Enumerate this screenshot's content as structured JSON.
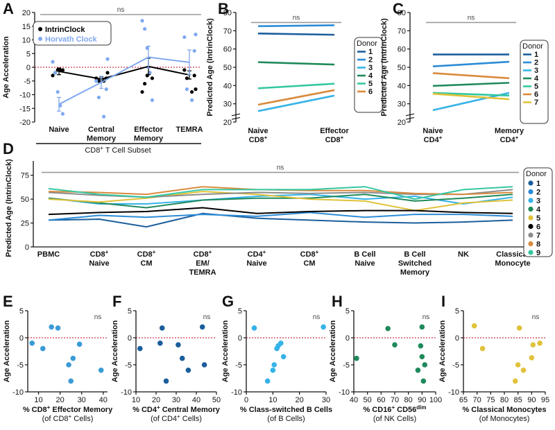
{
  "chart_data": [
    {
      "panel": "A",
      "type": "scatter",
      "ylabel": "Age Acceleration",
      "xlabel": "CD8+ T Cell Subset",
      "ylim": [
        -20,
        20
      ],
      "yticks": [
        -20,
        -15,
        -10,
        -5,
        0,
        5,
        10,
        15,
        20
      ],
      "categories": [
        "Naive",
        "Central\nMemory",
        "Effector\nMemory",
        "TEMRA"
      ],
      "annotation": "ns",
      "legend": [
        "IntrinClock",
        "Horvath Clock"
      ],
      "series": [
        {
          "name": "IntrinClock",
          "color": "#000000",
          "points": [
            [
              -1,
              -3
            ],
            [
              -3,
              -2
            ],
            [
              -4,
              -1
            ],
            [
              -6,
              -1
            ],
            [
              -9,
              -1
            ],
            [
              -1,
              -2
            ],
            [
              -2,
              -4
            ],
            [
              -3,
              -4
            ],
            [
              -4,
              -5
            ],
            [
              -5,
              -5
            ],
            [
              8,
              -9
            ],
            [
              12,
              -6
            ],
            [
              -1,
              -3
            ],
            [
              -6,
              -2
            ],
            [
              10,
              -4
            ],
            [
              -5,
              -8
            ],
            [
              -1,
              -1
            ],
            [
              -2,
              -3
            ],
            [
              -3,
              -4
            ],
            [
              -8,
              -9
            ]
          ],
          "means": [
            -1.5,
            -4.3,
            0.3,
            -2.8
          ],
          "errors": [
            1.2,
            0.8,
            3.0,
            1.5
          ]
        },
        {
          "name": "Horvath Clock",
          "color": "#7fa8ef",
          "points": [
            [
              2,
              -2
            ],
            [
              -2,
              -8
            ],
            [
              -9,
              -9
            ],
            [
              -14,
              -6
            ],
            [
              -17,
              -9
            ],
            [
              3,
              -3
            ],
            [
              -5,
              -5
            ],
            [
              -8,
              -9
            ],
            [
              -11,
              -1
            ],
            [
              -18,
              -6
            ],
            [
              17,
              -5
            ],
            [
              14,
              -8
            ],
            [
              7,
              -1
            ],
            [
              -2,
              -3
            ],
            [
              -12,
              -6
            ],
            [
              12,
              -8
            ],
            [
              11,
              -6
            ],
            [
              6,
              -1
            ],
            [
              -8,
              -3
            ],
            [
              -12,
              -6
            ]
          ],
          "means": [
            -13.5,
            -5.5,
            3.7,
            1.8
          ],
          "errors": [
            2.5,
            2.2,
            4.0,
            4.5
          ]
        }
      ]
    },
    {
      "panel": "B",
      "type": "line",
      "ylabel": "Predicted Age (IntrinClock)",
      "ylim": [
        20,
        80
      ],
      "yticks": [
        20,
        30,
        40,
        50,
        60,
        70,
        80
      ],
      "categories": [
        "Naive\nCD8+",
        "Effector\nCD8+"
      ],
      "annotation": "ns",
      "legend_title": "Donor",
      "series": [
        {
          "name": "1",
          "color": "#1b5e9c",
          "values": [
            68.5,
            67.8
          ]
        },
        {
          "name": "2",
          "color": "#2b8bd6",
          "values": [
            72.5,
            73.0
          ]
        },
        {
          "name": "3",
          "color": "#35b3e8",
          "values": [
            26.0,
            34.5
          ]
        },
        {
          "name": "4",
          "color": "#1f8a5b",
          "values": [
            52.8,
            51.5
          ]
        },
        {
          "name": "5",
          "color": "#34c7a0",
          "values": [
            38.5,
            41.0
          ]
        },
        {
          "name": "6",
          "color": "#d98a3d",
          "values": [
            29.5,
            37.5
          ]
        }
      ]
    },
    {
      "panel": "C",
      "type": "line",
      "ylabel": "Predicted Age (IntrinClock)",
      "ylim": [
        20,
        80
      ],
      "yticks": [
        20,
        30,
        40,
        50,
        60,
        70,
        80
      ],
      "categories": [
        "Naive\nCD4+",
        "Memory\nCD4+"
      ],
      "annotation": "ns",
      "legend_title": "Donor",
      "series": [
        {
          "name": "1",
          "color": "#1b5e9c",
          "values": [
            57.0,
            57.0
          ]
        },
        {
          "name": "2",
          "color": "#2b8bd6",
          "values": [
            50.5,
            53.0
          ]
        },
        {
          "name": "3",
          "color": "#35b3e8",
          "values": [
            26.5,
            36.0
          ]
        },
        {
          "name": "4",
          "color": "#1f8a5b",
          "values": [
            39.8,
            41.5
          ]
        },
        {
          "name": "5",
          "color": "#34c7a0",
          "values": [
            36.0,
            34.5
          ]
        },
        {
          "name": "6",
          "color": "#d98a3d",
          "values": [
            46.8,
            44.0
          ]
        },
        {
          "name": "7",
          "color": "#e0c23b",
          "values": [
            35.5,
            32.5
          ]
        }
      ]
    },
    {
      "panel": "D",
      "type": "line",
      "ylabel": "Predicted Age (IntrinClock)",
      "ylim": [
        0,
        90
      ],
      "yticks": [
        0,
        25,
        50,
        75
      ],
      "categories": [
        "PBMC",
        "CD8+\nNaive",
        "CD8+\nCM",
        "CD8+\nEM/\nTEMRA",
        "CD4+\nNaive",
        "CD8+\nCM",
        "B Cell\nNaive",
        "B Cell\nSwitched\nMemory",
        "NK",
        "Classical\nMonocyte"
      ],
      "annotation": "ns",
      "legend_title": "Donor",
      "series": [
        {
          "name": "1",
          "color": "#1b5e9c",
          "values": [
            28,
            29,
            21,
            35,
            30,
            28,
            26,
            25,
            26,
            28
          ]
        },
        {
          "name": "2",
          "color": "#2b8bd6",
          "values": [
            28,
            33,
            31,
            34,
            32,
            36,
            31,
            34,
            34,
            32
          ]
        },
        {
          "name": "3",
          "color": "#35b3e8",
          "values": [
            51,
            45,
            45,
            49,
            53,
            55,
            50,
            53,
            45,
            52
          ]
        },
        {
          "name": "4",
          "color": "#1f8a5b",
          "values": [
            51,
            46,
            41,
            49,
            51,
            51,
            55,
            48,
            51,
            55
          ]
        },
        {
          "name": "5",
          "color": "#e0c23b",
          "values": [
            50,
            47,
            51,
            58,
            55,
            50,
            48,
            38,
            46,
            49
          ]
        },
        {
          "name": "6",
          "color": "#000000",
          "values": [
            34,
            36,
            37,
            41,
            35,
            37,
            38,
            38,
            36,
            35
          ]
        },
        {
          "name": "7",
          "color": "#8c8c8c",
          "values": [
            57,
            54,
            52,
            55,
            57,
            56,
            57,
            55,
            55,
            60
          ]
        },
        {
          "name": "8",
          "color": "#d98a3d",
          "values": [
            58,
            57,
            55,
            63,
            60,
            59,
            59,
            56,
            55,
            57
          ]
        },
        {
          "name": "9",
          "color": "#34c7a0",
          "values": [
            61,
            55,
            52,
            60,
            60,
            60,
            63,
            50,
            60,
            63
          ]
        }
      ]
    },
    {
      "panel": "E",
      "type": "scatter",
      "color": "#3a9bd6",
      "ylabel": "Age Acceleration",
      "xlabel": "% CD8+ Effector Memory",
      "xlabel2": "(of CD8+ Cells)",
      "xlim": [
        5,
        42
      ],
      "xticks": [
        10,
        20,
        30,
        40
      ],
      "ylim": [
        -10,
        5
      ],
      "yticks": [
        -10,
        -5,
        0,
        5
      ],
      "annotation": "ns",
      "x": [
        7,
        12,
        16,
        19,
        24,
        25,
        26,
        29,
        39
      ],
      "y": [
        -1,
        -2,
        2,
        1.8,
        -5,
        -8,
        -3.8,
        -1.2,
        -6
      ]
    },
    {
      "panel": "F",
      "type": "scatter",
      "color": "#1b5e9c",
      "ylabel": "Age Acceleration",
      "xlabel": "% CD4+ Central Memory",
      "xlabel2": "(of CD4+ Cells)",
      "xlim": [
        10,
        50
      ],
      "xticks": [
        10,
        20,
        30,
        40,
        50
      ],
      "ylim": [
        -10,
        5
      ],
      "yticks": [
        -10,
        -5,
        0,
        5
      ],
      "annotation": "ns",
      "x": [
        12,
        22,
        23,
        25,
        31,
        33,
        36,
        43,
        44
      ],
      "y": [
        -2,
        -1,
        1.8,
        -8,
        -1.3,
        -3.8,
        -6,
        2,
        -5
      ]
    },
    {
      "panel": "G",
      "type": "scatter",
      "color": "#35b3e8",
      "ylabel": "Age Acceleration",
      "xlabel": "% Class-switched B Cells",
      "xlabel2": "(of B Cells)",
      "xlim": [
        0,
        30
      ],
      "xticks": [
        0,
        10,
        20,
        30
      ],
      "ylim": [
        -10,
        5
      ],
      "yticks": [
        -10,
        -5,
        0,
        5
      ],
      "annotation": "ns",
      "x": [
        3,
        8,
        10,
        10.5,
        11.5,
        12,
        13,
        14,
        29
      ],
      "y": [
        1.8,
        -8,
        -6,
        -5,
        -2,
        -1.5,
        -1,
        -3.5,
        2
      ]
    },
    {
      "panel": "H",
      "type": "scatter",
      "color": "#1f8a5b",
      "ylabel": "Age Acceleration",
      "xlabel": "% CD16+ CD56dim",
      "xlabel2": "(of NK Cells)",
      "xlim": [
        40,
        100
      ],
      "xticks": [
        40,
        50,
        60,
        70,
        80,
        90,
        100
      ],
      "ylim": [
        -10,
        5
      ],
      "yticks": [
        -10,
        -5,
        0,
        5
      ],
      "annotation": "ns",
      "x": [
        42,
        65,
        70,
        87,
        89,
        90,
        90,
        91,
        92
      ],
      "y": [
        -3.8,
        1.7,
        -1.3,
        -6,
        -1.5,
        2,
        -3.5,
        -8,
        -5
      ]
    },
    {
      "panel": "I",
      "type": "scatter",
      "color": "#e0c23b",
      "ylabel": "Age Acceleration",
      "xlabel": "% Classical Monocytes",
      "xlabel2": "(of Monocytes)",
      "xlim": [
        65,
        95
      ],
      "xticks": [
        65,
        70,
        75,
        80,
        85,
        90,
        95
      ],
      "ylim": [
        -10,
        5
      ],
      "yticks": [
        -10,
        -5,
        0,
        5
      ],
      "annotation": "ns",
      "x": [
        69,
        72,
        84,
        85,
        85.5,
        87,
        90,
        90.5,
        93
      ],
      "y": [
        2.2,
        -2,
        -8,
        -5,
        1.8,
        -6,
        -3.7,
        -1.3,
        -1
      ]
    }
  ],
  "labels": {
    "A": "A",
    "B": "B",
    "C": "C",
    "D": "D",
    "E": "E",
    "F": "F",
    "G": "G",
    "H": "H",
    "I": "I",
    "a_subset_label": "CD8+ T Cell Subset"
  }
}
